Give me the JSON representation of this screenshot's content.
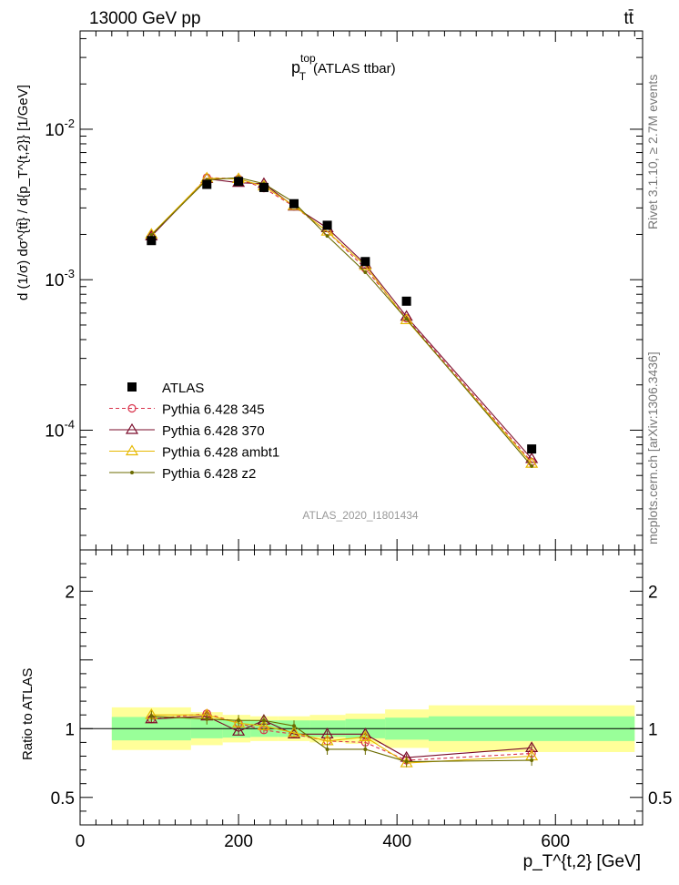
{
  "header": {
    "energy_label": "13000 GeV pp",
    "process_label": "tt̄"
  },
  "title": {
    "main": "p",
    "sup": "top",
    "sub": "T",
    "rest": "(ATLAS ttbar)"
  },
  "ylabel_main": "d (1/σ) dσ^{tt̄} / d{p_T^{t,2}} [1/GeV]",
  "ylabel_ratio": "Ratio to ATLAS",
  "xlabel": "p_T^{t,2} [GeV]",
  "watermark": "ATLAS_2020_I1801434",
  "side_text_top": "Rivet 3.1.10, ≥ 2.7M events",
  "side_text_bottom": "mcplots.cern.ch [arXiv:1306.3436]",
  "colors": {
    "atlas": "#000000",
    "p345": "#d9334c",
    "p370": "#7a0b2a",
    "ambt1": "#e6b800",
    "z2": "#6b6b00",
    "band_inner": "#99ff99",
    "band_outer": "#ffff99"
  },
  "chart_data": {
    "type": "scatter",
    "xlim": [
      0,
      710
    ],
    "ylim_main": [
      1.6e-05,
      0.045
    ],
    "yscale_main": "log",
    "ylim_ratio": [
      0.3,
      2.3
    ],
    "main_yticks": [
      {
        "value": 0.01,
        "label": "10^-2"
      },
      {
        "value": 0.001,
        "label": "10^-3"
      },
      {
        "value": 0.0001,
        "label": "10^-4"
      }
    ],
    "ratio_yticks": [
      {
        "value": 0.5,
        "label": "0.5"
      },
      {
        "value": 1,
        "label": "1"
      },
      {
        "value": 2,
        "label": "2"
      }
    ],
    "xticks": [
      {
        "value": 0,
        "label": "0"
      },
      {
        "value": 200,
        "label": "200"
      },
      {
        "value": 400,
        "label": "400"
      },
      {
        "value": 600,
        "label": "600"
      }
    ],
    "legend": [
      {
        "key": "atlas",
        "label": "ATLAS"
      },
      {
        "key": "p345",
        "label": "Pythia 6.428 345"
      },
      {
        "key": "p370",
        "label": "Pythia 6.428 370"
      },
      {
        "key": "ambt1",
        "label": "Pythia 6.428 ambt1"
      },
      {
        "key": "z2",
        "label": "Pythia 6.428 z2"
      }
    ],
    "bins": [
      {
        "x": 90,
        "lo": 40,
        "hi": 140,
        "atlas": 0.00182,
        "inner": 0.085,
        "outer": 0.155
      },
      {
        "x": 160,
        "lo": 140,
        "hi": 180,
        "atlas": 0.0043,
        "inner": 0.07,
        "outer": 0.12
      },
      {
        "x": 200,
        "lo": 180,
        "hi": 215,
        "atlas": 0.0045,
        "inner": 0.065,
        "outer": 0.1
      },
      {
        "x": 232,
        "lo": 215,
        "hi": 250,
        "atlas": 0.0041,
        "inner": 0.06,
        "outer": 0.09
      },
      {
        "x": 270,
        "lo": 250,
        "hi": 290,
        "atlas": 0.0032,
        "inner": 0.06,
        "outer": 0.09
      },
      {
        "x": 312,
        "lo": 290,
        "hi": 335,
        "atlas": 0.0023,
        "inner": 0.06,
        "outer": 0.1
      },
      {
        "x": 360,
        "lo": 335,
        "hi": 385,
        "atlas": 0.00132,
        "inner": 0.07,
        "outer": 0.11
      },
      {
        "x": 412,
        "lo": 385,
        "hi": 440,
        "atlas": 0.00072,
        "inner": 0.08,
        "outer": 0.14
      },
      {
        "x": 570,
        "lo": 440,
        "hi": 700,
        "atlas": 7.5e-05,
        "inner": 0.09,
        "outer": 0.17
      }
    ],
    "series": [
      {
        "key": "p345",
        "name": "Pythia 6.428 345",
        "marker": "circle",
        "dashed": true,
        "ratio": [
          1.07,
          1.11,
          1.04,
          0.99,
          0.96,
          0.91,
          0.9,
          0.77,
          0.82
        ]
      },
      {
        "key": "p370",
        "name": "Pythia 6.428 370",
        "marker": "triangle",
        "dashed": false,
        "ratio": [
          1.07,
          1.09,
          0.98,
          1.06,
          0.96,
          0.96,
          0.96,
          0.79,
          0.86
        ]
      },
      {
        "key": "ambt1",
        "name": "Pythia 6.428 ambt1",
        "marker": "triangle",
        "dashed": false,
        "ratio": [
          1.1,
          1.1,
          1.04,
          1.02,
          0.97,
          0.91,
          0.94,
          0.75,
          0.8
        ]
      },
      {
        "key": "z2",
        "name": "Pythia 6.428 z2",
        "marker": "dot",
        "dashed": false,
        "ratio": [
          1.09,
          1.07,
          1.06,
          1.06,
          1.02,
          0.85,
          0.85,
          0.76,
          0.77
        ]
      }
    ]
  }
}
